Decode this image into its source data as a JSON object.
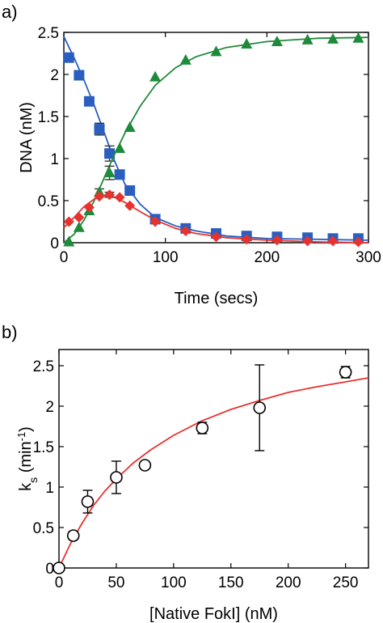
{
  "chart_data": [
    {
      "panel_label": "a)",
      "type": "line",
      "xlabel": "Time (secs)",
      "ylabel": "DNA (nM)",
      "xlim": [
        0,
        300
      ],
      "ylim": [
        0,
        2.5
      ],
      "xticks": [
        0,
        100,
        200,
        300
      ],
      "xtick_labels": [
        "0",
        "100",
        "200",
        "300"
      ],
      "yticks": [
        0,
        0.5,
        1,
        1.5,
        2,
        2.5
      ],
      "ytick_labels": [
        "0",
        "0.5",
        "1",
        "1.5",
        "2",
        "2.5"
      ],
      "grid": false,
      "series": [
        {
          "marker": "square",
          "color": "#2a5fc0",
          "points": [
            [
              5,
              2.2
            ],
            [
              15,
              1.99
            ],
            [
              25,
              1.68
            ],
            [
              35,
              1.35
            ],
            [
              45,
              1.06
            ],
            [
              55,
              0.81
            ],
            [
              65,
              0.62
            ],
            [
              90,
              0.28
            ],
            [
              120,
              0.17
            ],
            [
              150,
              0.11
            ],
            [
              180,
              0.08
            ],
            [
              210,
              0.07
            ],
            [
              240,
              0.06
            ],
            [
              265,
              0.05
            ],
            [
              290,
              0.05
            ]
          ],
          "errors": [
            0,
            0,
            0.03,
            0.07,
            0.09,
            0.04,
            0,
            0,
            0,
            0,
            0,
            0,
            0,
            0,
            0
          ],
          "fit": [
            [
              0,
              2.45
            ],
            [
              10,
              2.2
            ],
            [
              20,
              1.93
            ],
            [
              30,
              1.63
            ],
            [
              40,
              1.3
            ],
            [
              50,
              0.97
            ],
            [
              60,
              0.7
            ],
            [
              75,
              0.46
            ],
            [
              90,
              0.3
            ],
            [
              110,
              0.2
            ],
            [
              130,
              0.14
            ],
            [
              160,
              0.08
            ],
            [
              200,
              0.05
            ],
            [
              250,
              0.04
            ],
            [
              300,
              0.03
            ]
          ]
        },
        {
          "marker": "triangle",
          "color": "#1f8a3a",
          "points": [
            [
              5,
              0.01
            ],
            [
              15,
              0.18
            ],
            [
              25,
              0.38
            ],
            [
              35,
              0.6
            ],
            [
              45,
              0.83
            ],
            [
              55,
              1.12
            ],
            [
              65,
              1.37
            ],
            [
              90,
              1.97
            ],
            [
              120,
              2.17
            ],
            [
              150,
              2.27
            ],
            [
              180,
              2.36
            ],
            [
              210,
              2.39
            ],
            [
              240,
              2.41
            ],
            [
              265,
              2.42
            ],
            [
              290,
              2.43
            ]
          ],
          "errors": [
            0,
            0,
            0,
            0.04,
            0.08,
            0,
            0,
            0,
            0,
            0,
            0,
            0,
            0,
            0,
            0
          ],
          "fit": [
            [
              0,
              0
            ],
            [
              10,
              0.1
            ],
            [
              20,
              0.27
            ],
            [
              30,
              0.5
            ],
            [
              40,
              0.78
            ],
            [
              50,
              1.05
            ],
            [
              60,
              1.3
            ],
            [
              75,
              1.62
            ],
            [
              90,
              1.87
            ],
            [
              110,
              2.08
            ],
            [
              130,
              2.21
            ],
            [
              160,
              2.32
            ],
            [
              200,
              2.39
            ],
            [
              250,
              2.43
            ],
            [
              300,
              2.44
            ]
          ]
        },
        {
          "marker": "diamond",
          "color": "#e8322e",
          "points": [
            [
              5,
              0.25
            ],
            [
              15,
              0.3
            ],
            [
              25,
              0.42
            ],
            [
              35,
              0.55
            ],
            [
              45,
              0.57
            ],
            [
              55,
              0.54
            ],
            [
              65,
              0.44
            ],
            [
              90,
              0.25
            ],
            [
              120,
              0.14
            ],
            [
              150,
              0.07
            ],
            [
              180,
              0.04
            ],
            [
              210,
              0.03
            ],
            [
              240,
              0.02
            ],
            [
              265,
              0.02
            ],
            [
              290,
              0.01
            ]
          ],
          "errors": [
            0,
            0,
            0,
            0,
            0.03,
            0,
            0,
            0,
            0,
            0,
            0,
            0,
            0,
            0,
            0
          ],
          "fit": [
            [
              0,
              0.18
            ],
            [
              10,
              0.3
            ],
            [
              20,
              0.43
            ],
            [
              30,
              0.52
            ],
            [
              40,
              0.56
            ],
            [
              50,
              0.54
            ],
            [
              60,
              0.48
            ],
            [
              75,
              0.37
            ],
            [
              90,
              0.27
            ],
            [
              110,
              0.17
            ],
            [
              130,
              0.11
            ],
            [
              160,
              0.06
            ],
            [
              200,
              0.03
            ],
            [
              250,
              0.01
            ],
            [
              300,
              0
            ]
          ]
        }
      ]
    },
    {
      "panel_label": "b)",
      "type": "scatter",
      "xlabel": "[Native FokI] (nM)",
      "ylabel_main": "k",
      "ylabel_sub": "s",
      "ylabel_rest": " (min",
      "ylabel_sup": "-1",
      "ylabel_end": ")",
      "xlim": [
        0,
        270
      ],
      "ylim": [
        0,
        2.7
      ],
      "xticks": [
        0,
        50,
        100,
        150,
        200,
        250
      ],
      "xtick_labels": [
        "0",
        "50",
        "100",
        "150",
        "200",
        "250"
      ],
      "yticks": [
        0,
        0.5,
        1,
        1.5,
        2,
        2.5
      ],
      "ytick_labels": [
        "0",
        "0.5",
        "1",
        "1.5",
        "2",
        "2.5"
      ],
      "grid": false,
      "series": [
        {
          "marker": "open-circle",
          "color": "#000000",
          "points": [
            [
              0,
              0
            ],
            [
              12.5,
              0.4
            ],
            [
              25,
              0.82
            ],
            [
              50,
              1.12
            ],
            [
              75,
              1.27
            ],
            [
              125,
              1.73
            ],
            [
              175,
              1.98
            ],
            [
              250,
              2.42
            ]
          ],
          "errors": [
            0,
            0.05,
            0.14,
            0.2,
            0.04,
            0.07,
            0.53,
            0.07
          ],
          "fit_color": "#e8322e",
          "fit": [
            [
              0,
              0
            ],
            [
              10,
              0.3
            ],
            [
              20,
              0.55
            ],
            [
              30,
              0.77
            ],
            [
              40,
              0.95
            ],
            [
              50,
              1.1
            ],
            [
              65,
              1.3
            ],
            [
              80,
              1.46
            ],
            [
              100,
              1.64
            ],
            [
              125,
              1.82
            ],
            [
              150,
              1.96
            ],
            [
              175,
              2.07
            ],
            [
              200,
              2.17
            ],
            [
              225,
              2.24
            ],
            [
              250,
              2.3
            ],
            [
              270,
              2.35
            ]
          ]
        }
      ]
    }
  ]
}
